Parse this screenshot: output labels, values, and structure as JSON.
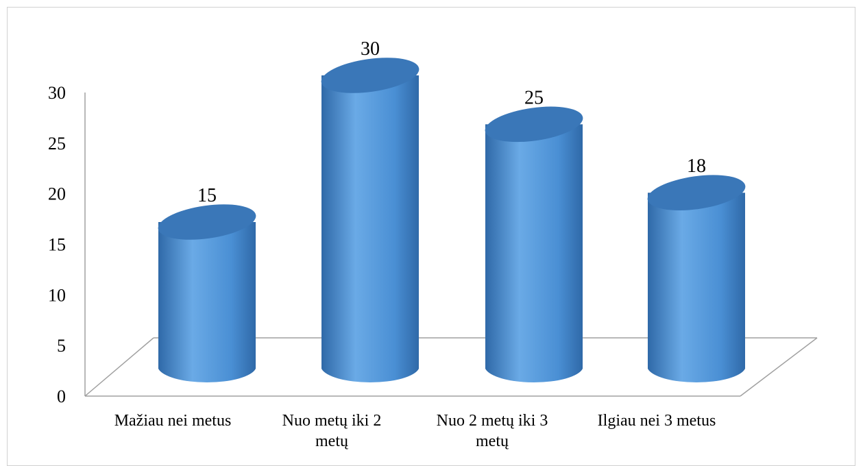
{
  "chart_data": {
    "type": "bar",
    "style": "3d-cylinder",
    "categories": [
      [
        "Mažiau nei metus"
      ],
      [
        "Nuo metų iki 2",
        "metų"
      ],
      [
        "Nuo 2 metų iki 3",
        "metų"
      ],
      [
        "Ilgiau nei 3 metus"
      ]
    ],
    "values": [
      15,
      30,
      25,
      18
    ],
    "data_labels": [
      "15",
      "30",
      "25",
      "18"
    ],
    "ylim": [
      0,
      30
    ],
    "yticks": [
      "0",
      "5",
      "10",
      "15",
      "20",
      "25",
      "30"
    ],
    "grid": false,
    "legend": "none",
    "title": "",
    "xlabel": "",
    "ylabel": "",
    "colors": {
      "bar_light": "#6aaae6",
      "bar_mid": "#4a8fd4",
      "bar_dark": "#2f69a8",
      "bar_top": "#3a77b8",
      "axis": "#a0a0a0"
    }
  }
}
